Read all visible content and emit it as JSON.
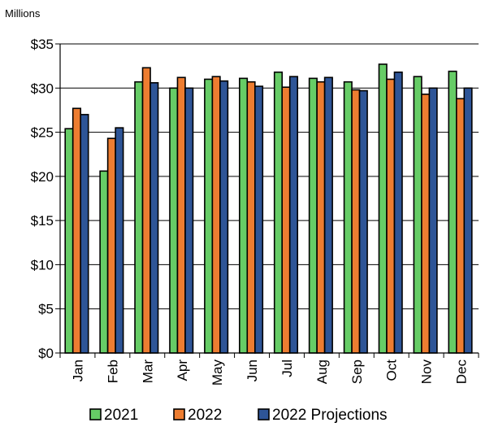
{
  "chart_data": {
    "type": "bar",
    "unit_label": "Millions",
    "y_tick_labels": [
      "$0",
      "$5",
      "$10",
      "$15",
      "$20",
      "$25",
      "$30",
      "$35"
    ],
    "ylim": [
      0,
      35
    ],
    "y_tick_step": 5,
    "grid": true,
    "legend_position": "bottom",
    "categories": [
      "Jan",
      "Feb",
      "Mar",
      "Apr",
      "May",
      "Jun",
      "Jul",
      "Aug",
      "Sep",
      "Oct",
      "Nov",
      "Dec"
    ],
    "series": [
      {
        "name": "2021",
        "color": "#66CC66",
        "values": [
          25.4,
          20.6,
          30.7,
          30.0,
          31.0,
          31.1,
          31.8,
          31.1,
          30.7,
          32.7,
          31.3,
          31.9
        ]
      },
      {
        "name": "2022",
        "color": "#ED7D31",
        "values": [
          27.7,
          24.3,
          32.3,
          31.2,
          31.3,
          30.7,
          30.1,
          30.7,
          29.8,
          31.0,
          29.3,
          28.8
        ]
      },
      {
        "name": "2022 Projections",
        "color": "#2E5597",
        "values": [
          27.0,
          25.5,
          30.6,
          30.0,
          30.8,
          30.2,
          31.3,
          31.2,
          29.7,
          31.8,
          30.0,
          30.0
        ]
      }
    ]
  }
}
